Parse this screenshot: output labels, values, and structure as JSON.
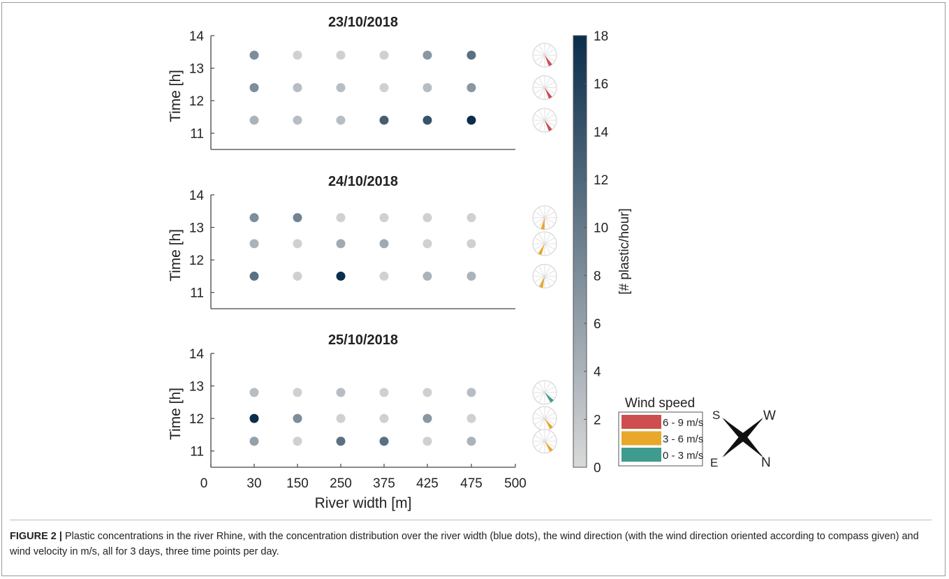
{
  "chart_data": {
    "type": "scatter",
    "panels": [
      {
        "title": "23/10/2018",
        "ylabel": "Time [h]",
        "ylim": [
          10.5,
          14
        ],
        "yticks": [
          11,
          12,
          13,
          14
        ],
        "times": [
          13.4,
          12.4,
          11.4
        ],
        "values": [
          [
            8,
            1,
            1,
            1,
            7,
            11
          ],
          [
            8,
            3,
            3,
            1,
            3,
            7
          ],
          [
            4,
            3,
            3,
            13,
            14,
            18
          ]
        ],
        "wind": [
          {
            "speed": "6 - 9 m/s",
            "direction_deg": 150
          },
          {
            "speed": "6 - 9 m/s",
            "direction_deg": 150
          },
          {
            "speed": "6 - 9 m/s",
            "direction_deg": 150
          }
        ]
      },
      {
        "title": "24/10/2018",
        "ylabel": "Time [h]",
        "ylim": [
          10.5,
          14
        ],
        "yticks": [
          11,
          12,
          13,
          14
        ],
        "times": [
          13.3,
          12.5,
          11.5
        ],
        "values": [
          [
            8,
            9,
            1,
            1,
            1,
            1
          ],
          [
            4,
            1,
            5,
            5,
            1,
            1
          ],
          [
            11,
            1,
            18,
            1,
            4,
            4
          ]
        ],
        "wind": [
          {
            "speed": "3 - 6 m/s",
            "direction_deg": 190
          },
          {
            "speed": "3 - 6 m/s",
            "direction_deg": 205
          },
          {
            "speed": "3 - 6 m/s",
            "direction_deg": 198
          }
        ]
      },
      {
        "title": "25/10/2018",
        "ylabel": "Time [h]",
        "ylim": [
          10.5,
          14
        ],
        "yticks": [
          11,
          12,
          13,
          14
        ],
        "times": [
          12.8,
          12.0,
          11.3
        ],
        "values": [
          [
            3,
            1,
            3,
            1,
            1,
            3
          ],
          [
            18,
            8,
            1,
            1,
            7,
            1
          ],
          [
            6,
            1,
            11,
            11,
            1,
            4
          ]
        ],
        "wind": [
          {
            "speed": "0 - 3 m/s",
            "direction_deg": 140
          },
          {
            "speed": "3 - 6 m/s",
            "direction_deg": 145
          },
          {
            "speed": "3 - 6 m/s",
            "direction_deg": 145
          }
        ]
      }
    ],
    "x_positions": [
      30,
      150,
      250,
      375,
      425,
      475
    ],
    "xticks": [
      "0",
      "30",
      "150",
      "250",
      "375",
      "425",
      "475",
      "500"
    ],
    "xlabel": "River width [m]",
    "colorbar": {
      "label": "[# plastic/hour]",
      "range": [
        0,
        18
      ],
      "ticks": [
        0,
        2,
        4,
        6,
        8,
        10,
        12,
        14,
        16,
        18
      ],
      "color_low": "#d9d9d9",
      "color_high": "#0a2e4c"
    },
    "legend": {
      "title": "Wind speed",
      "entries": [
        {
          "label": "6 - 9 m/s",
          "color": "#cd4e4e"
        },
        {
          "label": "3 - 6 m/s",
          "color": "#e8a82a"
        },
        {
          "label": "0 - 3 m/s",
          "color": "#3e9b8e"
        }
      ]
    },
    "compass": {
      "labels": [
        "S",
        "W",
        "E",
        "N"
      ]
    }
  },
  "caption": {
    "label": "FIGURE 2 |",
    "text": "Plastic concentrations in the river Rhine, with the concentration distribution over the river width (blue dots), the wind direction (with the wind direction oriented according to compass given) and wind velocity in m/s, all for 3 days, three time points per day."
  }
}
